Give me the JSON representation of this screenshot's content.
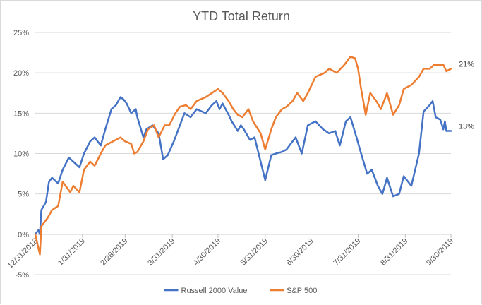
{
  "chart_data": {
    "type": "line",
    "title": "YTD Total Return",
    "xlabel": "",
    "ylabel": "",
    "x_tick_labels": [
      "12/31/2018",
      "1/31/2019",
      "2/28/2019",
      "3/31/2019",
      "4/30/2019",
      "5/31/2019",
      "6/30/2019",
      "7/31/2019",
      "8/31/2019",
      "9/30/2019"
    ],
    "y_tick_labels": [
      "-5%",
      "0%",
      "5%",
      "10%",
      "15%",
      "20%",
      "25%"
    ],
    "ylim": [
      -5,
      25
    ],
    "grid": true,
    "legend_position": "bottom",
    "end_labels": [
      {
        "series": "S&P 500",
        "text": "21%"
      },
      {
        "series": "Russell 2000 Value",
        "text": "13%"
      }
    ],
    "series": [
      {
        "name": "Russell 2000 Value",
        "color": "#4472C4",
        "points": [
          [
            "2018-12-31",
            0
          ],
          [
            "2019-01-02",
            0.5
          ],
          [
            "2019-01-03",
            0
          ],
          [
            "2019-01-04",
            3
          ],
          [
            "2019-01-07",
            4
          ],
          [
            "2019-01-09",
            6.5
          ],
          [
            "2019-01-11",
            7
          ],
          [
            "2019-01-15",
            6.3
          ],
          [
            "2019-01-18",
            8
          ],
          [
            "2019-01-22",
            9.5
          ],
          [
            "2019-01-25",
            9
          ],
          [
            "2019-01-29",
            8.3
          ],
          [
            "2019-02-01",
            10
          ],
          [
            "2019-02-05",
            11.5
          ],
          [
            "2019-02-08",
            12
          ],
          [
            "2019-02-12",
            11
          ],
          [
            "2019-02-15",
            13
          ],
          [
            "2019-02-19",
            15.5
          ],
          [
            "2019-02-22",
            16
          ],
          [
            "2019-02-25",
            17
          ],
          [
            "2019-02-27",
            16.7
          ],
          [
            "2019-03-01",
            16.2
          ],
          [
            "2019-03-04",
            15
          ],
          [
            "2019-03-07",
            15.5
          ],
          [
            "2019-03-08",
            14.5
          ],
          [
            "2019-03-12",
            12
          ],
          [
            "2019-03-14",
            13
          ],
          [
            "2019-03-18",
            13.5
          ],
          [
            "2019-03-22",
            12.5
          ],
          [
            "2019-03-25",
            9.3
          ],
          [
            "2019-03-28",
            9.8
          ],
          [
            "2019-04-01",
            11.5
          ],
          [
            "2019-04-04",
            13
          ],
          [
            "2019-04-08",
            15
          ],
          [
            "2019-04-12",
            14.5
          ],
          [
            "2019-04-16",
            15.5
          ],
          [
            "2019-04-22",
            15
          ],
          [
            "2019-04-26",
            16
          ],
          [
            "2019-04-29",
            16.5
          ],
          [
            "2019-05-01",
            15.5
          ],
          [
            "2019-05-03",
            16.2
          ],
          [
            "2019-05-07",
            14.8
          ],
          [
            "2019-05-09",
            14
          ],
          [
            "2019-05-13",
            12.8
          ],
          [
            "2019-05-15",
            13.5
          ],
          [
            "2019-05-17",
            13
          ],
          [
            "2019-05-21",
            11.7
          ],
          [
            "2019-05-24",
            12
          ],
          [
            "2019-05-28",
            9
          ],
          [
            "2019-05-31",
            6.7
          ],
          [
            "2019-06-04",
            9.8
          ],
          [
            "2019-06-07",
            10
          ],
          [
            "2019-06-11",
            10.2
          ],
          [
            "2019-06-14",
            10.5
          ],
          [
            "2019-06-18",
            11.5
          ],
          [
            "2019-06-20",
            12
          ],
          [
            "2019-06-24",
            10
          ],
          [
            "2019-06-28",
            13.5
          ],
          [
            "2019-07-03",
            14
          ],
          [
            "2019-07-08",
            13
          ],
          [
            "2019-07-12",
            12.5
          ],
          [
            "2019-07-16",
            12.8
          ],
          [
            "2019-07-19",
            11
          ],
          [
            "2019-07-23",
            14
          ],
          [
            "2019-07-26",
            14.5
          ],
          [
            "2019-07-30",
            12
          ],
          [
            "2019-08-02",
            10
          ],
          [
            "2019-08-06",
            7.5
          ],
          [
            "2019-08-09",
            8
          ],
          [
            "2019-08-13",
            6
          ],
          [
            "2019-08-16",
            5
          ],
          [
            "2019-08-19",
            7
          ],
          [
            "2019-08-23",
            4.7
          ],
          [
            "2019-08-27",
            5
          ],
          [
            "2019-08-30",
            7.2
          ],
          [
            "2019-09-04",
            6
          ],
          [
            "2019-09-09",
            10
          ],
          [
            "2019-09-12",
            15.2
          ],
          [
            "2019-09-16",
            16
          ],
          [
            "2019-09-18",
            16.5
          ],
          [
            "2019-09-20",
            14.5
          ],
          [
            "2019-09-23",
            14.2
          ],
          [
            "2019-09-25",
            13
          ],
          [
            "2019-09-26",
            14
          ],
          [
            "2019-09-27",
            12.8
          ],
          [
            "2019-09-30",
            12.8
          ]
        ]
      },
      {
        "name": "S&P 500",
        "color": "#ED7D31",
        "points": [
          [
            "2018-12-31",
            0
          ],
          [
            "2019-01-03",
            -2.5
          ],
          [
            "2019-01-04",
            1
          ],
          [
            "2019-01-08",
            2
          ],
          [
            "2019-01-11",
            3
          ],
          [
            "2019-01-15",
            3.5
          ],
          [
            "2019-01-18",
            6.5
          ],
          [
            "2019-01-23",
            5.2
          ],
          [
            "2019-01-25",
            6
          ],
          [
            "2019-01-29",
            5.2
          ],
          [
            "2019-02-01",
            8
          ],
          [
            "2019-02-05",
            9
          ],
          [
            "2019-02-08",
            8.5
          ],
          [
            "2019-02-12",
            10
          ],
          [
            "2019-02-15",
            11
          ],
          [
            "2019-02-20",
            11.5
          ],
          [
            "2019-02-25",
            12
          ],
          [
            "2019-02-28",
            11.5
          ],
          [
            "2019-03-04",
            11.2
          ],
          [
            "2019-03-06",
            10
          ],
          [
            "2019-03-08",
            10.2
          ],
          [
            "2019-03-12",
            11.5
          ],
          [
            "2019-03-15",
            13
          ],
          [
            "2019-03-19",
            13.5
          ],
          [
            "2019-03-22",
            12
          ],
          [
            "2019-03-26",
            13.5
          ],
          [
            "2019-03-29",
            13.5
          ],
          [
            "2019-04-02",
            15
          ],
          [
            "2019-04-05",
            15.8
          ],
          [
            "2019-04-09",
            16
          ],
          [
            "2019-04-12",
            15.5
          ],
          [
            "2019-04-16",
            16.5
          ],
          [
            "2019-04-22",
            17
          ],
          [
            "2019-04-26",
            17.5
          ],
          [
            "2019-04-30",
            18
          ],
          [
            "2019-05-03",
            17.5
          ],
          [
            "2019-05-07",
            16.5
          ],
          [
            "2019-05-10",
            15.5
          ],
          [
            "2019-05-13",
            14.8
          ],
          [
            "2019-05-16",
            14.5
          ],
          [
            "2019-05-20",
            15.5
          ],
          [
            "2019-05-23",
            14
          ],
          [
            "2019-05-28",
            12.5
          ],
          [
            "2019-05-31",
            10.5
          ],
          [
            "2019-06-04",
            13
          ],
          [
            "2019-06-07",
            14.5
          ],
          [
            "2019-06-11",
            15.5
          ],
          [
            "2019-06-14",
            15.8
          ],
          [
            "2019-06-18",
            16.5
          ],
          [
            "2019-06-21",
            17.5
          ],
          [
            "2019-06-25",
            16.5
          ],
          [
            "2019-06-28",
            17.5
          ],
          [
            "2019-07-03",
            19.5
          ],
          [
            "2019-07-09",
            20
          ],
          [
            "2019-07-12",
            20.5
          ],
          [
            "2019-07-17",
            20
          ],
          [
            "2019-07-22",
            21
          ],
          [
            "2019-07-26",
            22
          ],
          [
            "2019-07-29",
            21.8
          ],
          [
            "2019-07-31",
            20.5
          ],
          [
            "2019-08-02",
            18
          ],
          [
            "2019-08-05",
            14.8
          ],
          [
            "2019-08-08",
            17.5
          ],
          [
            "2019-08-12",
            16.5
          ],
          [
            "2019-08-15",
            15.5
          ],
          [
            "2019-08-19",
            17.5
          ],
          [
            "2019-08-23",
            14.8
          ],
          [
            "2019-08-27",
            16
          ],
          [
            "2019-08-30",
            18
          ],
          [
            "2019-09-04",
            18.5
          ],
          [
            "2019-09-09",
            19.5
          ],
          [
            "2019-09-12",
            20.5
          ],
          [
            "2019-09-16",
            20.5
          ],
          [
            "2019-09-19",
            21
          ],
          [
            "2019-09-23",
            21
          ],
          [
            "2019-09-25",
            21
          ],
          [
            "2019-09-27",
            20.2
          ],
          [
            "2019-09-30",
            20.5
          ]
        ]
      }
    ]
  }
}
